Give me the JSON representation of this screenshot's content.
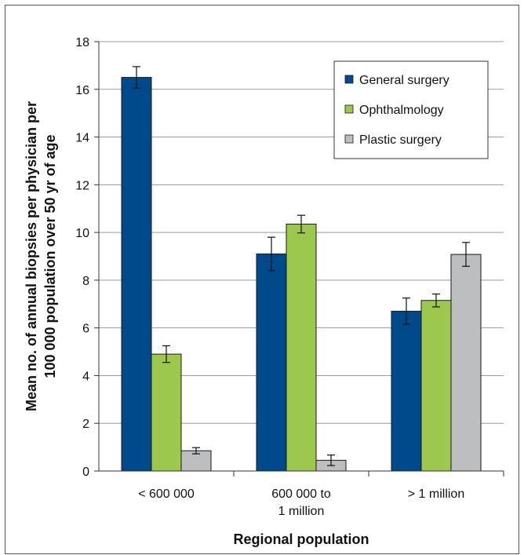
{
  "chart_data": {
    "type": "bar",
    "title": "",
    "xlabel": "Regional population",
    "ylabel_lines": [
      "Mean no. of annual biopsies per physician per",
      "100 000 population over 50 yr of age"
    ],
    "categories": [
      {
        "lines": [
          "< 600 000"
        ]
      },
      {
        "lines": [
          "600 000 to",
          "1 million"
        ]
      },
      {
        "lines": [
          "> 1 million"
        ]
      }
    ],
    "yticks": [
      "0",
      "2",
      "4",
      "6",
      "8",
      "10",
      "12",
      "14",
      "16",
      "18"
    ],
    "ylim": [
      0,
      18
    ],
    "grid": true,
    "legend_position": "top-right",
    "series": [
      {
        "name": "General surgery",
        "color": "#004a8c",
        "values": [
          16.5,
          9.1,
          6.7
        ],
        "err": [
          0.45,
          0.7,
          0.55
        ]
      },
      {
        "name": "Ophthalmology",
        "color": "#9cc84e",
        "values": [
          4.9,
          10.35,
          7.15
        ],
        "err": [
          0.35,
          0.37,
          0.27
        ]
      },
      {
        "name": "Plastic surgery",
        "color": "#bcbec0",
        "values": [
          0.85,
          0.45,
          9.08
        ],
        "err": [
          0.13,
          0.22,
          0.5
        ]
      }
    ]
  }
}
